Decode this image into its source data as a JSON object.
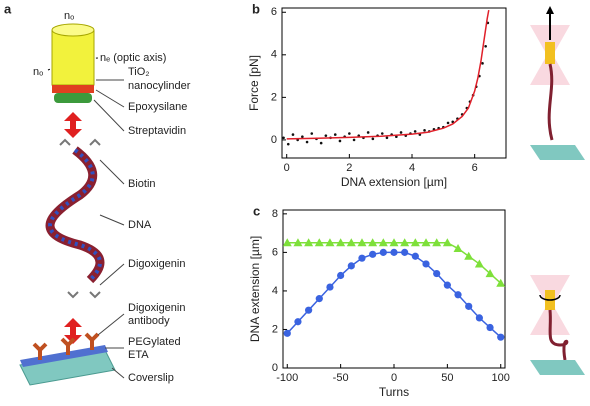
{
  "diagram": {
    "panel_label": "a",
    "labels": [
      "nₒ",
      "nₑ (optic axis)",
      "nₒ",
      "TiO₂",
      "nanocylinder",
      "Epoxysilane",
      "Streptavidin",
      "Biotin",
      "DNA",
      "Digoxigenin",
      "Digoxigenin",
      "antibody",
      "PEGylated",
      "ETA",
      "Coverslip"
    ]
  },
  "chart_data": [
    {
      "type": "scatter",
      "panel_label": "b",
      "xlabel": "DNA extension [µm]",
      "ylabel": "Force [pN]",
      "xlim": [
        -0.15,
        7
      ],
      "ylim": [
        -0.85,
        6.2
      ],
      "xticks": [
        0,
        2,
        4,
        6
      ],
      "yticks": [
        0,
        2,
        4,
        6
      ],
      "series": [
        {
          "color": "#111111",
          "x": [
            -0.1,
            0.05,
            0.2,
            0.35,
            0.5,
            0.65,
            0.8,
            0.95,
            1.1,
            1.25,
            1.4,
            1.55,
            1.7,
            1.85,
            2.0,
            2.15,
            2.3,
            2.45,
            2.6,
            2.75,
            2.9,
            3.05,
            3.2,
            3.35,
            3.5,
            3.65,
            3.8,
            3.95,
            4.1,
            4.25,
            4.4,
            4.55,
            4.7,
            4.85,
            5.0,
            5.15,
            5.3,
            5.45,
            5.6,
            5.75,
            5.85,
            5.95,
            6.05,
            6.15,
            6.25,
            6.35,
            6.42
          ],
          "values": [
            0.1,
            -0.2,
            0.25,
            0.0,
            0.15,
            -0.1,
            0.3,
            0.05,
            -0.15,
            0.2,
            0.1,
            0.25,
            -0.05,
            0.15,
            0.3,
            0.0,
            0.2,
            0.1,
            0.35,
            0.05,
            0.2,
            0.3,
            0.1,
            0.25,
            0.15,
            0.35,
            0.2,
            0.3,
            0.4,
            0.25,
            0.45,
            0.4,
            0.5,
            0.55,
            0.6,
            0.8,
            0.85,
            1.0,
            1.2,
            1.5,
            1.8,
            2.1,
            2.5,
            3.0,
            3.6,
            4.4,
            5.5
          ]
        },
        {
          "color": "#e0202a",
          "line": true,
          "x": [
            0,
            1,
            2,
            3,
            4,
            4.5,
            5,
            5.3,
            5.6,
            5.8,
            6.0,
            6.1,
            6.2,
            6.3,
            6.4,
            6.45
          ],
          "values": [
            0.05,
            0.08,
            0.12,
            0.17,
            0.27,
            0.36,
            0.55,
            0.75,
            1.1,
            1.5,
            2.3,
            2.9,
            3.7,
            4.7,
            5.7,
            6.1
          ]
        }
      ]
    },
    {
      "type": "line",
      "panel_label": "c",
      "xlabel": "Turns",
      "ylabel": "DNA extension [µm]",
      "xlim": [
        -104,
        104
      ],
      "ylim": [
        0,
        8.2
      ],
      "xticks": [
        -100,
        -50,
        0,
        50,
        100
      ],
      "yticks": [
        0,
        2,
        4,
        6,
        8
      ],
      "x": [
        -100,
        -90,
        -80,
        -70,
        -60,
        -50,
        -40,
        -30,
        -20,
        -10,
        0,
        10,
        20,
        30,
        40,
        50,
        60,
        70,
        80,
        90,
        100
      ],
      "series": [
        {
          "color": "#7ee03a",
          "marker": "triangle",
          "values": [
            6.5,
            6.5,
            6.5,
            6.5,
            6.5,
            6.5,
            6.5,
            6.5,
            6.5,
            6.5,
            6.5,
            6.5,
            6.5,
            6.5,
            6.5,
            6.5,
            6.2,
            5.8,
            5.4,
            4.9,
            4.4
          ]
        },
        {
          "color": "#3a63e0",
          "marker": "circle",
          "values": [
            1.8,
            2.4,
            3.0,
            3.6,
            4.2,
            4.8,
            5.3,
            5.7,
            5.9,
            6.0,
            6.0,
            6.0,
            5.8,
            5.4,
            4.9,
            4.3,
            3.8,
            3.2,
            2.6,
            2.1,
            1.6
          ]
        }
      ]
    }
  ]
}
